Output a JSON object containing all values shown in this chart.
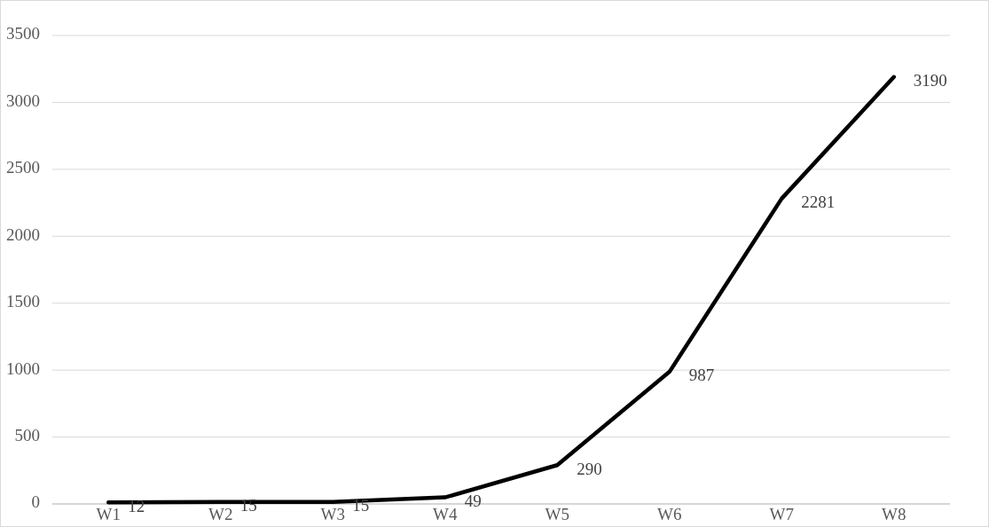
{
  "chart_data": {
    "type": "line",
    "categories": [
      "W1",
      "W2",
      "W3",
      "W4",
      "W5",
      "W6",
      "W7",
      "W8"
    ],
    "series": [
      {
        "color": "#000000",
        "values": [
          12,
          15,
          15,
          49,
          290,
          987,
          2281,
          3190
        ]
      }
    ],
    "ylim": [
      0,
      3500
    ],
    "yticks": [
      0,
      500,
      1000,
      1500,
      2000,
      2500,
      3000,
      3500
    ],
    "grid": "y",
    "data_labels": true,
    "marker": "none",
    "line_style": "solid"
  }
}
